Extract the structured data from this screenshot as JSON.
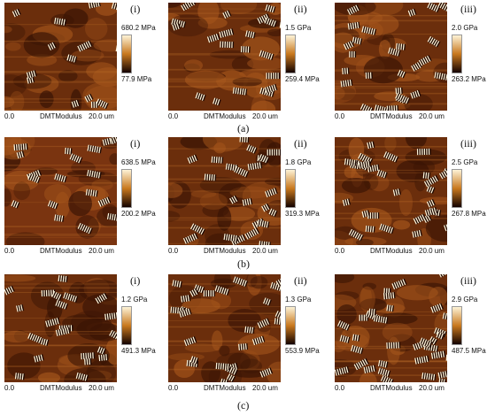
{
  "axis": {
    "start": "0.0",
    "name": "DMTModulus",
    "end": "20.0 um"
  },
  "rows": [
    {
      "label": "(a)",
      "panels": [
        {
          "roman": "(i)",
          "max": "680.2 MPa",
          "min": "77.9 MPa"
        },
        {
          "roman": "(ii)",
          "max": "1.5 GPa",
          "min": "259.4 MPa"
        },
        {
          "roman": "(iii)",
          "max": "2.0 GPa",
          "min": "263.2 MPa"
        }
      ]
    },
    {
      "label": "(b)",
      "panels": [
        {
          "roman": "(i)",
          "max": "638.5 MPa",
          "min": "200.2 MPa"
        },
        {
          "roman": "(ii)",
          "max": "1.8 GPa",
          "min": "319.3 MPa"
        },
        {
          "roman": "(iii)",
          "max": "2.5 GPa",
          "min": "267.8 MPa"
        }
      ]
    },
    {
      "label": "(c)",
      "panels": [
        {
          "roman": "(i)",
          "max": "1.2 GPa",
          "min": "491.3 MPa"
        },
        {
          "roman": "(ii)",
          "max": "1.3 GPa",
          "min": "553.9 MPa"
        },
        {
          "roman": "(iii)",
          "max": "2.9 GPa",
          "min": "487.5 MPa"
        }
      ]
    }
  ],
  "colors": {
    "colorbar_top": "#fdf3d6",
    "colorbar_mid": "#c8781e",
    "colorbar_bottom": "#140300",
    "image_base": "#6b2e0c",
    "image_dark": "#3a1404",
    "image_light": "#fff6dc"
  }
}
